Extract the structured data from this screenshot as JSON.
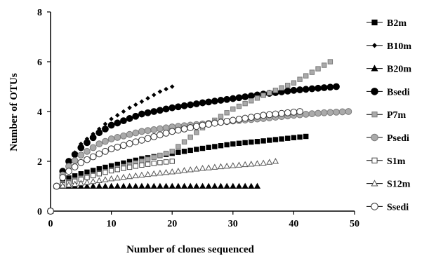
{
  "chart_data": {
    "type": "scatter",
    "xlabel": "Number of clones sequenced",
    "ylabel": "Number of OTUs",
    "xlim": [
      0,
      50
    ],
    "ylim": [
      0,
      8
    ],
    "xticks": [
      "0",
      "10",
      "20",
      "30",
      "40",
      "50"
    ],
    "yticks": [
      "0",
      "2",
      "4",
      "6",
      "8"
    ],
    "grid": false,
    "legend_position": "right",
    "series": [
      {
        "name": "B2m",
        "marker": "square",
        "fill": "#000000",
        "stroke": "#000000",
        "n": 42,
        "points": [
          [
            0,
            0
          ],
          [
            1,
            1
          ],
          [
            2,
            1.18
          ],
          [
            3,
            1.33
          ],
          [
            5,
            1.5
          ],
          [
            8,
            1.7
          ],
          [
            10,
            1.82
          ],
          [
            15,
            2.1
          ],
          [
            20,
            2.32
          ],
          [
            25,
            2.52
          ],
          [
            30,
            2.7
          ],
          [
            35,
            2.82
          ],
          [
            40,
            2.95
          ],
          [
            42,
            3.0
          ]
        ]
      },
      {
        "name": "B10m",
        "marker": "diamond",
        "fill": "#000000",
        "stroke": "#000000",
        "n": 20,
        "points": [
          [
            0,
            0
          ],
          [
            1,
            1
          ],
          [
            2,
            1.6
          ],
          [
            3,
            2.0
          ],
          [
            5,
            2.7
          ],
          [
            8,
            3.3
          ],
          [
            10,
            3.7
          ],
          [
            13,
            4.15
          ],
          [
            15,
            4.4
          ],
          [
            18,
            4.8
          ],
          [
            20,
            5.0
          ]
        ]
      },
      {
        "name": "B20m",
        "marker": "triangle",
        "fill": "#000000",
        "stroke": "#000000",
        "n": 34,
        "points": [
          [
            0,
            0
          ],
          [
            1,
            1
          ],
          [
            34,
            1.0
          ]
        ]
      },
      {
        "name": "Bsedi",
        "marker": "circle",
        "fill": "#000000",
        "stroke": "#000000",
        "n": 47,
        "points": [
          [
            0,
            0
          ],
          [
            1,
            1
          ],
          [
            2,
            1.6
          ],
          [
            3,
            2.0
          ],
          [
            5,
            2.55
          ],
          [
            8,
            3.15
          ],
          [
            10,
            3.45
          ],
          [
            15,
            3.9
          ],
          [
            20,
            4.15
          ],
          [
            25,
            4.35
          ],
          [
            30,
            4.52
          ],
          [
            35,
            4.7
          ],
          [
            40,
            4.85
          ],
          [
            47,
            5.0
          ]
        ]
      },
      {
        "name": "P7m",
        "marker": "square",
        "fill": "#aaaaaa",
        "stroke": "#7a7a7a",
        "n": 46,
        "points": [
          [
            0,
            0
          ],
          [
            1,
            1
          ],
          [
            2,
            1.1
          ],
          [
            5,
            1.32
          ],
          [
            10,
            1.65
          ],
          [
            15,
            2.0
          ],
          [
            20,
            2.4
          ],
          [
            25,
            3.35
          ],
          [
            30,
            4.1
          ],
          [
            35,
            4.65
          ],
          [
            40,
            5.15
          ],
          [
            46,
            6.0
          ]
        ]
      },
      {
        "name": "Psedi",
        "marker": "circle",
        "fill": "#aaaaaa",
        "stroke": "#7a7a7a",
        "n": 49,
        "points": [
          [
            0,
            0
          ],
          [
            1,
            1
          ],
          [
            2,
            1.45
          ],
          [
            3,
            1.8
          ],
          [
            5,
            2.25
          ],
          [
            8,
            2.7
          ],
          [
            10,
            2.9
          ],
          [
            15,
            3.2
          ],
          [
            20,
            3.38
          ],
          [
            25,
            3.5
          ],
          [
            30,
            3.62
          ],
          [
            35,
            3.72
          ],
          [
            40,
            3.85
          ],
          [
            45,
            3.95
          ],
          [
            49,
            4.0
          ]
        ]
      },
      {
        "name": "S1m",
        "marker": "square",
        "fill": "#ffffff",
        "stroke": "#444444",
        "n": 20,
        "points": [
          [
            0,
            0
          ],
          [
            1,
            1
          ],
          [
            2,
            1.05
          ],
          [
            4,
            1.2
          ],
          [
            6,
            1.35
          ],
          [
            8,
            1.5
          ],
          [
            10,
            1.62
          ],
          [
            12,
            1.72
          ],
          [
            15,
            1.85
          ],
          [
            18,
            1.95
          ],
          [
            20,
            2.0
          ]
        ]
      },
      {
        "name": "S12m",
        "marker": "triangle",
        "fill": "#ffffff",
        "stroke": "#555555",
        "n": 37,
        "points": [
          [
            0,
            0
          ],
          [
            1,
            1
          ],
          [
            2,
            1.02
          ],
          [
            5,
            1.12
          ],
          [
            10,
            1.3
          ],
          [
            15,
            1.45
          ],
          [
            20,
            1.58
          ],
          [
            25,
            1.72
          ],
          [
            30,
            1.83
          ],
          [
            35,
            1.93
          ],
          [
            37,
            2.0
          ]
        ]
      },
      {
        "name": "Ssedi",
        "marker": "circle",
        "fill": "#ffffff",
        "stroke": "#333333",
        "n": 41,
        "points": [
          [
            0,
            0
          ],
          [
            1,
            1
          ],
          [
            2,
            1.35
          ],
          [
            3,
            1.6
          ],
          [
            5,
            1.95
          ],
          [
            8,
            2.3
          ],
          [
            10,
            2.5
          ],
          [
            15,
            2.85
          ],
          [
            20,
            3.2
          ],
          [
            25,
            3.45
          ],
          [
            30,
            3.65
          ],
          [
            35,
            3.85
          ],
          [
            41,
            4.0
          ]
        ]
      }
    ]
  }
}
